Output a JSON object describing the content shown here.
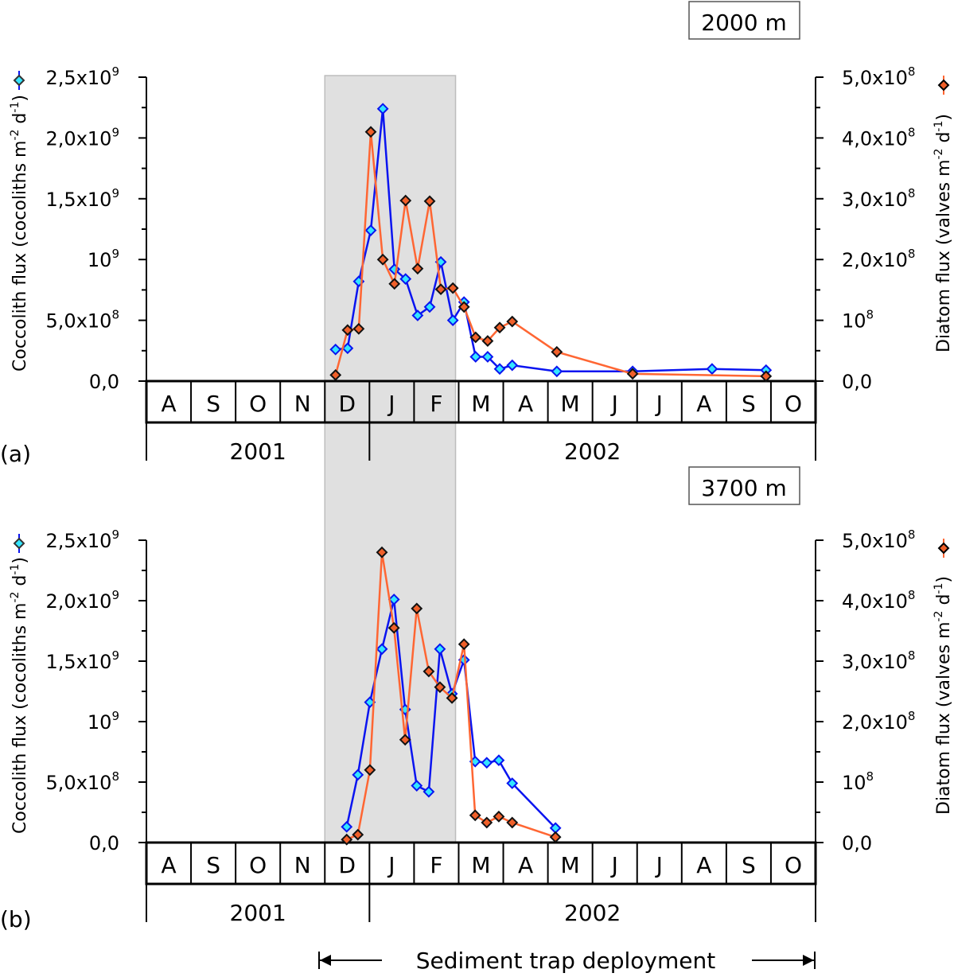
{
  "chart_data": [
    {
      "type": "line",
      "panel_label": "(a)",
      "depth": "2000 m",
      "x_unit": "months since 1 Aug 2001",
      "months": [
        "A",
        "S",
        "O",
        "N",
        "D",
        "J",
        "F",
        "M",
        "A",
        "M",
        "J",
        "J",
        "A",
        "S",
        "O"
      ],
      "years": [
        "2001",
        "2002"
      ],
      "shaded_deployment_window_months": [
        4.0,
        6.93
      ],
      "left_axis": {
        "label": "Coccolith flux (cocoliths m-2 d-1)",
        "label_parts": [
          "Coccolith flux (cocoliths m",
          "-2",
          " d",
          "-1",
          ")"
        ],
        "ylim": [
          0,
          2500000000.0
        ],
        "ticks": [
          {
            "b": "0,0",
            "e": ""
          },
          {
            "b": "5,0x10",
            "e": "8"
          },
          {
            "b": "10",
            "e": "9"
          },
          {
            "b": "1,5x10",
            "e": "9"
          },
          {
            "b": "2,0x10",
            "e": "9"
          },
          {
            "b": "2,5x10",
            "e": "9"
          }
        ]
      },
      "right_axis": {
        "label": "Diatom flux (valves m-2 d-1)",
        "label_parts": [
          "Diatom flux (valves m",
          "-2",
          " d",
          "-1",
          ")"
        ],
        "ylim": [
          0,
          500000000.0
        ],
        "ticks": [
          {
            "b": "0,0",
            "e": ""
          },
          {
            "b": "10",
            "e": "8"
          },
          {
            "b": "2,0x10",
            "e": "8"
          },
          {
            "b": "3,0x10",
            "e": "8"
          },
          {
            "b": "4,0x10",
            "e": "8"
          },
          {
            "b": "5,0x10",
            "e": "8"
          }
        ]
      },
      "series": [
        {
          "name": "Coccolith flux",
          "axis": "left",
          "color": "#0a14f0",
          "marker_fill": "#33e6ff",
          "x": [
            4.24,
            4.51,
            4.76,
            5.03,
            5.3,
            5.56,
            5.81,
            6.08,
            6.35,
            6.6,
            6.87,
            7.12,
            7.38,
            7.65,
            7.92,
            8.2,
            9.2,
            10.9,
            12.68,
            13.89
          ],
          "y": [
            260000000.0,
            270000000.0,
            820000000.0,
            1240000000.0,
            2240000000.0,
            920000000.0,
            840000000.0,
            540000000.0,
            610000000.0,
            980000000.0,
            500000000.0,
            650000000.0,
            200000000.0,
            200000000.0,
            100000000.0,
            130000000.0,
            80000000.0,
            80000000.0,
            100000000.0,
            90000000.0
          ]
        },
        {
          "name": "Diatom flux",
          "axis": "right",
          "color": "#ff6633",
          "marker_fill": "#f0602a",
          "x": [
            4.24,
            4.51,
            4.76,
            5.03,
            5.3,
            5.56,
            5.81,
            6.08,
            6.35,
            6.6,
            6.87,
            7.12,
            7.38,
            7.65,
            7.92,
            8.2,
            9.2,
            10.9,
            13.89
          ],
          "y": [
            10000000.0,
            84000000.0,
            86000000.0,
            410000000.0,
            200000000.0,
            160000000.0,
            297000000.0,
            185000000.0,
            296000000.0,
            151000000.0,
            153000000.0,
            122000000.0,
            72000000.0,
            66000000.0,
            88000000.0,
            98000000.0,
            48000000.0,
            12000000.0,
            8000000.0
          ]
        }
      ]
    },
    {
      "type": "line",
      "panel_label": "(b)",
      "depth": "3700 m",
      "x_unit": "months since 1 Aug 2001",
      "months": [
        "A",
        "S",
        "O",
        "N",
        "D",
        "J",
        "F",
        "M",
        "A",
        "M",
        "J",
        "J",
        "A",
        "S",
        "O"
      ],
      "years": [
        "2001",
        "2002"
      ],
      "shaded_deployment_window_months": [
        4.0,
        6.93
      ],
      "left_axis": {
        "label": "Coccolith flux (cocoliths m-2 d-1)",
        "label_parts": [
          "Coccolith flux (cocoliths m",
          "-2",
          " d",
          "-1",
          ")"
        ],
        "ylim": [
          0,
          2500000000.0
        ],
        "ticks": [
          {
            "b": "0,0",
            "e": ""
          },
          {
            "b": "5,0x10",
            "e": "8"
          },
          {
            "b": "10",
            "e": "9"
          },
          {
            "b": "1,5x10",
            "e": "9"
          },
          {
            "b": "2,0x10",
            "e": "9"
          },
          {
            "b": "2,5x10",
            "e": "9"
          }
        ]
      },
      "right_axis": {
        "label": "Diatom flux (valves m-2 d-1)",
        "label_parts": [
          "Diatom flux (valves m",
          "-2",
          " d",
          "-1",
          ")"
        ],
        "ylim": [
          0,
          500000000.0
        ],
        "ticks": [
          {
            "b": "0,0",
            "e": ""
          },
          {
            "b": "10",
            "e": "8"
          },
          {
            "b": "2,0x10",
            "e": "8"
          },
          {
            "b": "3,0x10",
            "e": "8"
          },
          {
            "b": "4,0x10",
            "e": "8"
          },
          {
            "b": "5,0x10",
            "e": "8"
          }
        ]
      },
      "series": [
        {
          "name": "Coccolith flux",
          "axis": "left",
          "color": "#0a14f0",
          "marker_fill": "#33e6ff",
          "x": [
            4.49,
            4.74,
            5.01,
            5.28,
            5.55,
            5.8,
            6.06,
            6.33,
            6.58,
            6.85,
            7.12,
            7.37,
            7.63,
            7.9,
            8.2,
            9.17
          ],
          "y": [
            130000000.0,
            560000000.0,
            1160000000.0,
            1600000000.0,
            2010000000.0,
            1100000000.0,
            470000000.0,
            420000000.0,
            1600000000.0,
            1230000000.0,
            1510000000.0,
            670000000.0,
            660000000.0,
            680000000.0,
            490000000.0,
            120000000.0
          ]
        },
        {
          "name": "Diatom flux",
          "axis": "right",
          "color": "#ff6633",
          "marker_fill": "#f0602a",
          "x": [
            4.49,
            4.74,
            5.01,
            5.28,
            5.55,
            5.8,
            6.06,
            6.33,
            6.58,
            6.85,
            7.12,
            7.37,
            7.63,
            7.9,
            8.2,
            9.17
          ],
          "y": [
            5000000.0,
            13000000.0,
            120000000.0,
            480000000.0,
            355000000.0,
            170000000.0,
            387000000.0,
            283000000.0,
            257000000.0,
            239000000.0,
            328000000.0,
            45000000.0,
            33000000.0,
            43000000.0,
            33000000.0,
            9000000.0
          ]
        }
      ]
    }
  ],
  "footer": {
    "deployment_label": "Sediment trap deployment"
  }
}
